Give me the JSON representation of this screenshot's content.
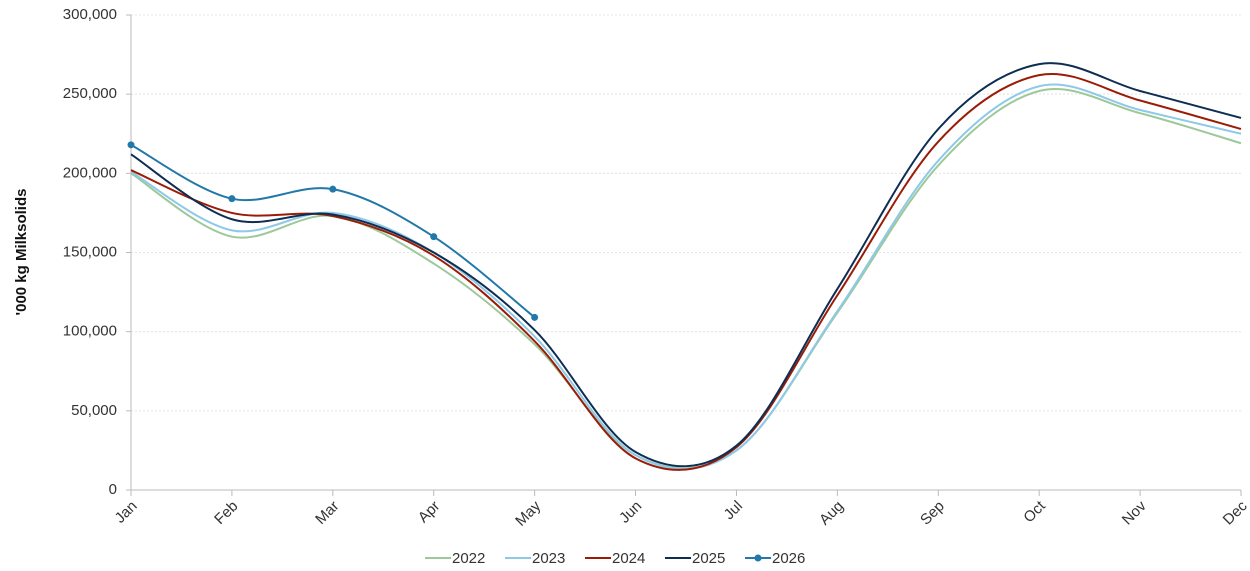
{
  "chart_data": {
    "type": "line",
    "y_label": "'000 kg Milksolids",
    "categories": [
      "Jan",
      "Feb",
      "Mar",
      "Apr",
      "May",
      "Jun",
      "Jul",
      "Aug",
      "Sep",
      "Oct",
      "Nov",
      "Dec"
    ],
    "series": [
      {
        "name": "2022",
        "color": "#9dc89a",
        "values": [
          200000,
          160000,
          173000,
          143000,
          92000,
          22000,
          25000,
          112000,
          205000,
          252000,
          238000,
          219000
        ]
      },
      {
        "name": "2023",
        "color": "#8ec9e8",
        "values": [
          201000,
          164000,
          175000,
          150000,
          97000,
          22000,
          25000,
          113000,
          208000,
          255000,
          240000,
          225000
        ]
      },
      {
        "name": "2024",
        "color": "#9a1c06",
        "values": [
          202000,
          175000,
          173000,
          148000,
          94000,
          20000,
          27000,
          123000,
          220000,
          262000,
          246000,
          228000
        ]
      },
      {
        "name": "2025",
        "color": "#0e2d52",
        "values": [
          212000,
          171000,
          174000,
          150000,
          101000,
          24000,
          28000,
          127000,
          228000,
          269000,
          252000,
          235000
        ]
      },
      {
        "name": "2026",
        "color": "#2278a8",
        "marker": true,
        "values": [
          218000,
          184000,
          190000,
          160000,
          109000,
          null,
          null,
          null,
          null,
          null,
          null,
          null
        ]
      }
    ],
    "ylim": [
      0,
      300000
    ],
    "yticks": [
      0,
      {
        "value": 50000,
        "label": "50,000"
      },
      {
        "value": 100000,
        "label": "100,000"
      },
      {
        "value": 150000,
        "label": "150,000"
      },
      {
        "value": 200000,
        "label": "200,000"
      },
      {
        "value": 250000,
        "label": "250,000"
      },
      {
        "value": 300000,
        "label": "300,000"
      }
    ],
    "grid": true,
    "legend": "bottom"
  }
}
